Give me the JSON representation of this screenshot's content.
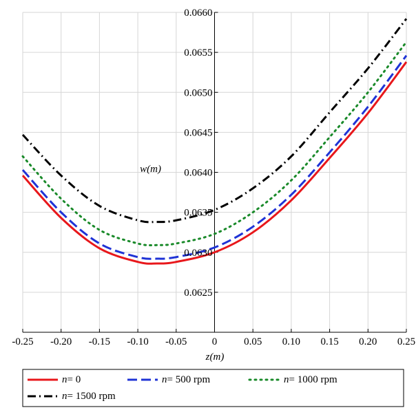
{
  "chart_data": {
    "type": "line",
    "title": "",
    "xlabel": "z(m)",
    "ylabel": "w(m)",
    "xlim": [
      -0.25,
      0.25
    ],
    "ylim": [
      0.062,
      0.066
    ],
    "x_ticks": [
      -0.25,
      -0.2,
      -0.15,
      -0.1,
      -0.05,
      0,
      0.05,
      0.1,
      0.15,
      0.2,
      0.25
    ],
    "x_tick_labels": [
      "-0.25",
      "-0.20",
      "-0.15",
      "-0.10",
      "-0.05",
      "0",
      "0.05",
      "0.10",
      "0.15",
      "0.20",
      "0.25"
    ],
    "y_ticks": [
      0.0625,
      0.063,
      0.0635,
      0.064,
      0.0645,
      0.065,
      0.0655,
      0.066
    ],
    "y_tick_labels": [
      "0.0625",
      "0.0630",
      "0.0635",
      "0.0640",
      "0.0645",
      "0.0650",
      "0.0655",
      "0.0660"
    ],
    "grid": true,
    "legend_position": "bottom",
    "series": [
      {
        "name": "n= 0",
        "label_prefix": "n",
        "label_suffix": "= 0",
        "color": "#e8171b",
        "style": "solid",
        "x": [
          -0.25,
          -0.2,
          -0.15,
          -0.1,
          -0.075,
          -0.05,
          0,
          0.05,
          0.1,
          0.15,
          0.2,
          0.25
        ],
        "y": [
          0.06396,
          0.06343,
          0.06305,
          0.06288,
          0.06286,
          0.06288,
          0.063,
          0.06325,
          0.06365,
          0.06418,
          0.06474,
          0.06538
        ]
      },
      {
        "name": "n= 500 rpm",
        "label_prefix": "n",
        "label_suffix": "= 500 rpm",
        "color": "#1f33d6",
        "style": "dash",
        "x": [
          -0.25,
          -0.2,
          -0.15,
          -0.1,
          -0.075,
          -0.05,
          0,
          0.05,
          0.1,
          0.15,
          0.2,
          0.25
        ],
        "y": [
          0.06403,
          0.0635,
          0.06311,
          0.06294,
          0.06292,
          0.06294,
          0.06306,
          0.06332,
          0.06372,
          0.06425,
          0.06482,
          0.06546
        ]
      },
      {
        "name": "n= 1000 rpm",
        "label_prefix": "n",
        "label_suffix": "= 1000 rpm",
        "color": "#1a8a2a",
        "style": "dot",
        "x": [
          -0.25,
          -0.2,
          -0.15,
          -0.1,
          -0.075,
          -0.05,
          0,
          0.05,
          0.1,
          0.15,
          0.2,
          0.25
        ],
        "y": [
          0.0642,
          0.06367,
          0.06328,
          0.06311,
          0.06309,
          0.06311,
          0.06323,
          0.0635,
          0.0639,
          0.06444,
          0.065,
          0.06563
        ]
      },
      {
        "name": "n= 1500 rpm",
        "label_prefix": "n",
        "label_suffix": "= 1500 rpm",
        "color": "#000000",
        "style": "dashdot",
        "x": [
          -0.25,
          -0.2,
          -0.15,
          -0.1,
          -0.075,
          -0.05,
          0,
          0.05,
          0.1,
          0.15,
          0.2,
          0.25
        ],
        "y": [
          0.06447,
          0.06396,
          0.06358,
          0.0634,
          0.06338,
          0.0634,
          0.06353,
          0.0638,
          0.0642,
          0.06475,
          0.0653,
          0.06592
        ]
      }
    ]
  }
}
